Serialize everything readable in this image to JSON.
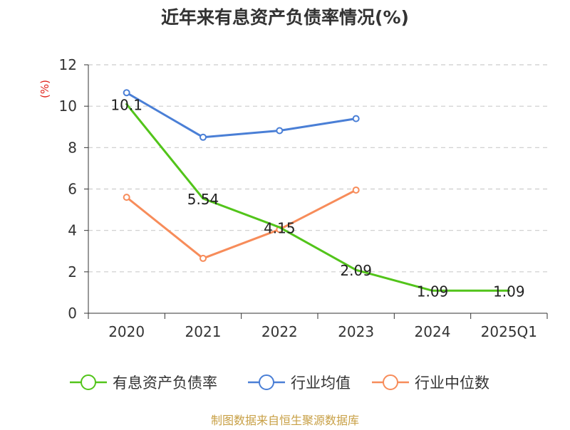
{
  "chart_data": {
    "type": "line",
    "title": "近年来有息资产负债率情况(%)",
    "ylabel": "(%)",
    "xlabel": "",
    "categories": [
      "2020",
      "2021",
      "2022",
      "2023",
      "2024",
      "2025Q1"
    ],
    "ylim": [
      0,
      12
    ],
    "yticks": [
      0,
      2,
      4,
      6,
      8,
      10,
      12
    ],
    "grid": true,
    "legend_position": "bottom",
    "series": [
      {
        "name": "有息资产负债率",
        "color": "#52c41a",
        "values": [
          10.1,
          5.54,
          4.15,
          2.09,
          1.09,
          1.09
        ],
        "labels": [
          "10.1",
          "5.54",
          "4.15",
          "2.09",
          "1.09",
          "1.09"
        ],
        "show_labels": true
      },
      {
        "name": "行业均值",
        "color": "#4a7fd6",
        "values": [
          10.65,
          8.5,
          8.82,
          9.4,
          null,
          null
        ],
        "show_labels": false
      },
      {
        "name": "行业中位数",
        "color": "#f78c5a",
        "values": [
          5.6,
          2.65,
          4.05,
          5.95,
          null,
          null
        ],
        "show_labels": false
      }
    ]
  },
  "footer": {
    "source": "制图数据来自恒生聚源数据库"
  },
  "colors": {
    "title": "#333333",
    "axis": "#333333",
    "ylabel": "#e0231b",
    "grid": "#cccccc",
    "source": "#c8a046"
  }
}
